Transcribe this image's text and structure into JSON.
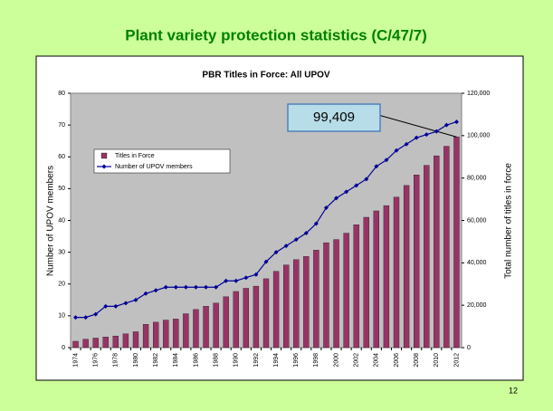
{
  "slide_title": "Plant variety protection statistics (C/47/7)",
  "page_number": "12",
  "chart_data": {
    "type": "bar",
    "title": "PBR Titles in Force:  All UPOV",
    "y_label": "Number of UPOV members",
    "y2_label": "Total number of titles in force",
    "categories": [
      "1974",
      null,
      "1976",
      null,
      "1978",
      null,
      "1980",
      null,
      "1982",
      null,
      "1984",
      null,
      "1986",
      null,
      "1988",
      null,
      "1990",
      null,
      "1992",
      null,
      "1994",
      null,
      "1996",
      null,
      "1998",
      null,
      "2000",
      null,
      "2002",
      null,
      "2004",
      null,
      "2006",
      null,
      "2008",
      null,
      "2010",
      null,
      "2012"
    ],
    "series": [
      {
        "name": "Titles in Force",
        "type": "bar",
        "axis": "y2",
        "color": "#993366",
        "values": [
          3000,
          4000,
          4500,
          5000,
          5500,
          6500,
          7500,
          11000,
          12000,
          13000,
          13500,
          16000,
          18000,
          19500,
          21000,
          24000,
          26500,
          28000,
          29000,
          32500,
          36000,
          39000,
          41500,
          43000,
          46000,
          49500,
          51000,
          54000,
          58000,
          61500,
          64500,
          67000,
          71000,
          76500,
          81500,
          86000,
          90500,
          95000,
          99409
        ],
        "value_labels": [
          null,
          null,
          null,
          null,
          null,
          null,
          null,
          null,
          null,
          null,
          null,
          null,
          null,
          null,
          null,
          null,
          null,
          null,
          null,
          null,
          null,
          null,
          null,
          null,
          null,
          null,
          null,
          null,
          null,
          null,
          null,
          null,
          null,
          null,
          null,
          null,
          null,
          null,
          "99,409"
        ]
      },
      {
        "name": "Number of UPOV members",
        "type": "line",
        "axis": "y",
        "color": "#000099",
        "values": [
          9.5,
          9.5,
          10.5,
          13,
          13,
          14,
          15,
          17,
          18,
          19,
          19,
          19,
          19,
          19,
          19,
          21,
          21,
          22,
          23,
          27,
          30,
          32,
          34,
          36,
          39,
          44,
          47,
          49,
          51,
          53,
          57,
          59,
          62,
          64,
          66,
          67,
          68,
          70,
          71
        ]
      }
    ],
    "ylim": [
      0,
      80
    ],
    "yticks": [
      0,
      10,
      20,
      30,
      40,
      50,
      60,
      70,
      80
    ],
    "y2lim": [
      0,
      120000
    ],
    "y2ticks": [
      0,
      {
        "value": 20000,
        "label": "20,000"
      },
      {
        "value": 40000,
        "label": "40,000"
      },
      {
        "value": 60000,
        "label": "60,000"
      },
      {
        "value": 80000,
        "label": "80,000"
      },
      {
        "value": 100000,
        "label": "100,000"
      },
      {
        "value": 120000,
        "label": "120,000"
      }
    ],
    "plot_background": "#c0c0c0",
    "legend": "upper left"
  }
}
